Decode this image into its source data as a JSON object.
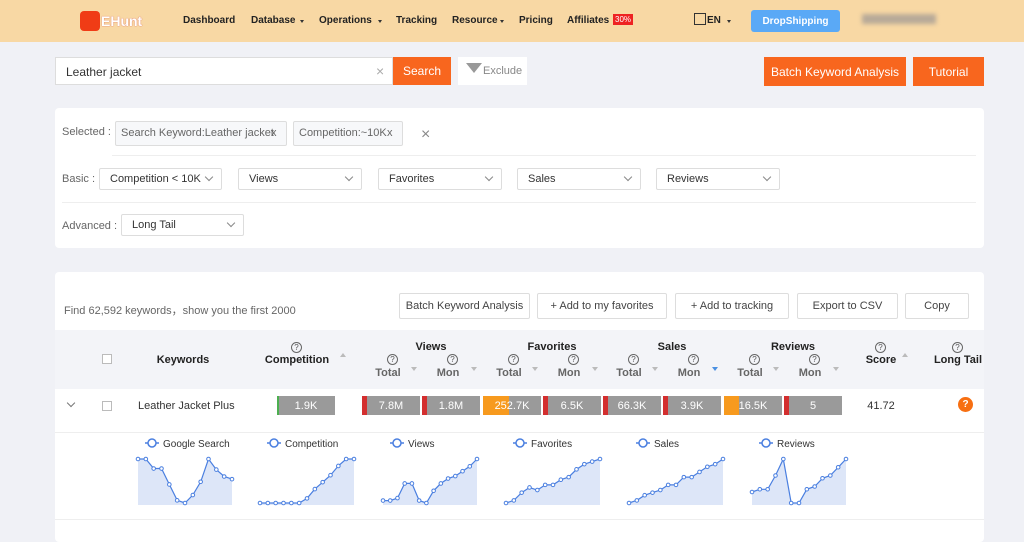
{
  "header": {
    "logo": "EHunt",
    "nav": [
      "Dashboard",
      "Database",
      "Operations",
      "Tracking",
      "Resource",
      "Pricing",
      "Affiliates"
    ],
    "badge": "30%",
    "lang": "EN",
    "dropshipping": "DropShipping"
  },
  "search": {
    "query": "Leather jacket",
    "button": "Search",
    "exclude": "Exclude",
    "batch": "Batch Keyword Analysis",
    "tutorial": "Tutorial"
  },
  "filters": {
    "selected_label": "Selected :",
    "chips": [
      "Search Keyword:Leather jacket",
      "Competition:~10K"
    ],
    "chip_close": "x",
    "basic_label": "Basic :",
    "basic": [
      "Competition < 10K",
      "Views",
      "Favorites",
      "Sales",
      "Reviews"
    ],
    "advanced_label": "Advanced :",
    "advanced": "Long Tail"
  },
  "results": {
    "summary": "Find 62,592 keywords，show you the first 2000",
    "actions": [
      "Batch Keyword Analysis",
      "+ Add to my favorites",
      "+ Add to tracking",
      "Export to CSV",
      "Copy"
    ]
  },
  "table": {
    "help_icon": "?",
    "columns": [
      "Keywords",
      "Competition",
      "Views",
      "Favorites",
      "Sales",
      "Reviews",
      "Score",
      "Long Tail"
    ],
    "sub": [
      "Total",
      "Mon"
    ],
    "row": {
      "keyword": "Leather Jacket Plus",
      "competition": "1.9K",
      "views": [
        "7.8M",
        "1.8M"
      ],
      "favorites": [
        "252.7K",
        "6.5K"
      ],
      "sales": [
        "66.3K",
        "3.9K"
      ],
      "reviews": [
        "16.5K",
        "5"
      ],
      "score": "41.72"
    },
    "trends": [
      {
        "name": "Google Search",
        "values": [
          88,
          88,
          70,
          70,
          40,
          10,
          5,
          20,
          45,
          88,
          68,
          55,
          50
        ]
      },
      {
        "name": "Competition",
        "values": [
          0,
          0,
          0,
          0,
          0,
          0,
          10,
          30,
          45,
          60,
          80,
          95,
          95
        ]
      },
      {
        "name": "Views",
        "values": [
          10,
          10,
          15,
          45,
          45,
          10,
          5,
          30,
          45,
          55,
          60,
          70,
          80,
          95
        ]
      },
      {
        "name": "Favorites",
        "values": [
          5,
          10,
          25,
          35,
          30,
          40,
          40,
          50,
          55,
          70,
          80,
          85,
          90
        ]
      },
      {
        "name": "Sales",
        "values": [
          5,
          10,
          20,
          25,
          30,
          40,
          40,
          55,
          55,
          65,
          75,
          80,
          90
        ]
      },
      {
        "name": "Reviews",
        "values": [
          30,
          35,
          35,
          60,
          90,
          10,
          10,
          35,
          40,
          55,
          60,
          75,
          90
        ]
      }
    ]
  }
}
